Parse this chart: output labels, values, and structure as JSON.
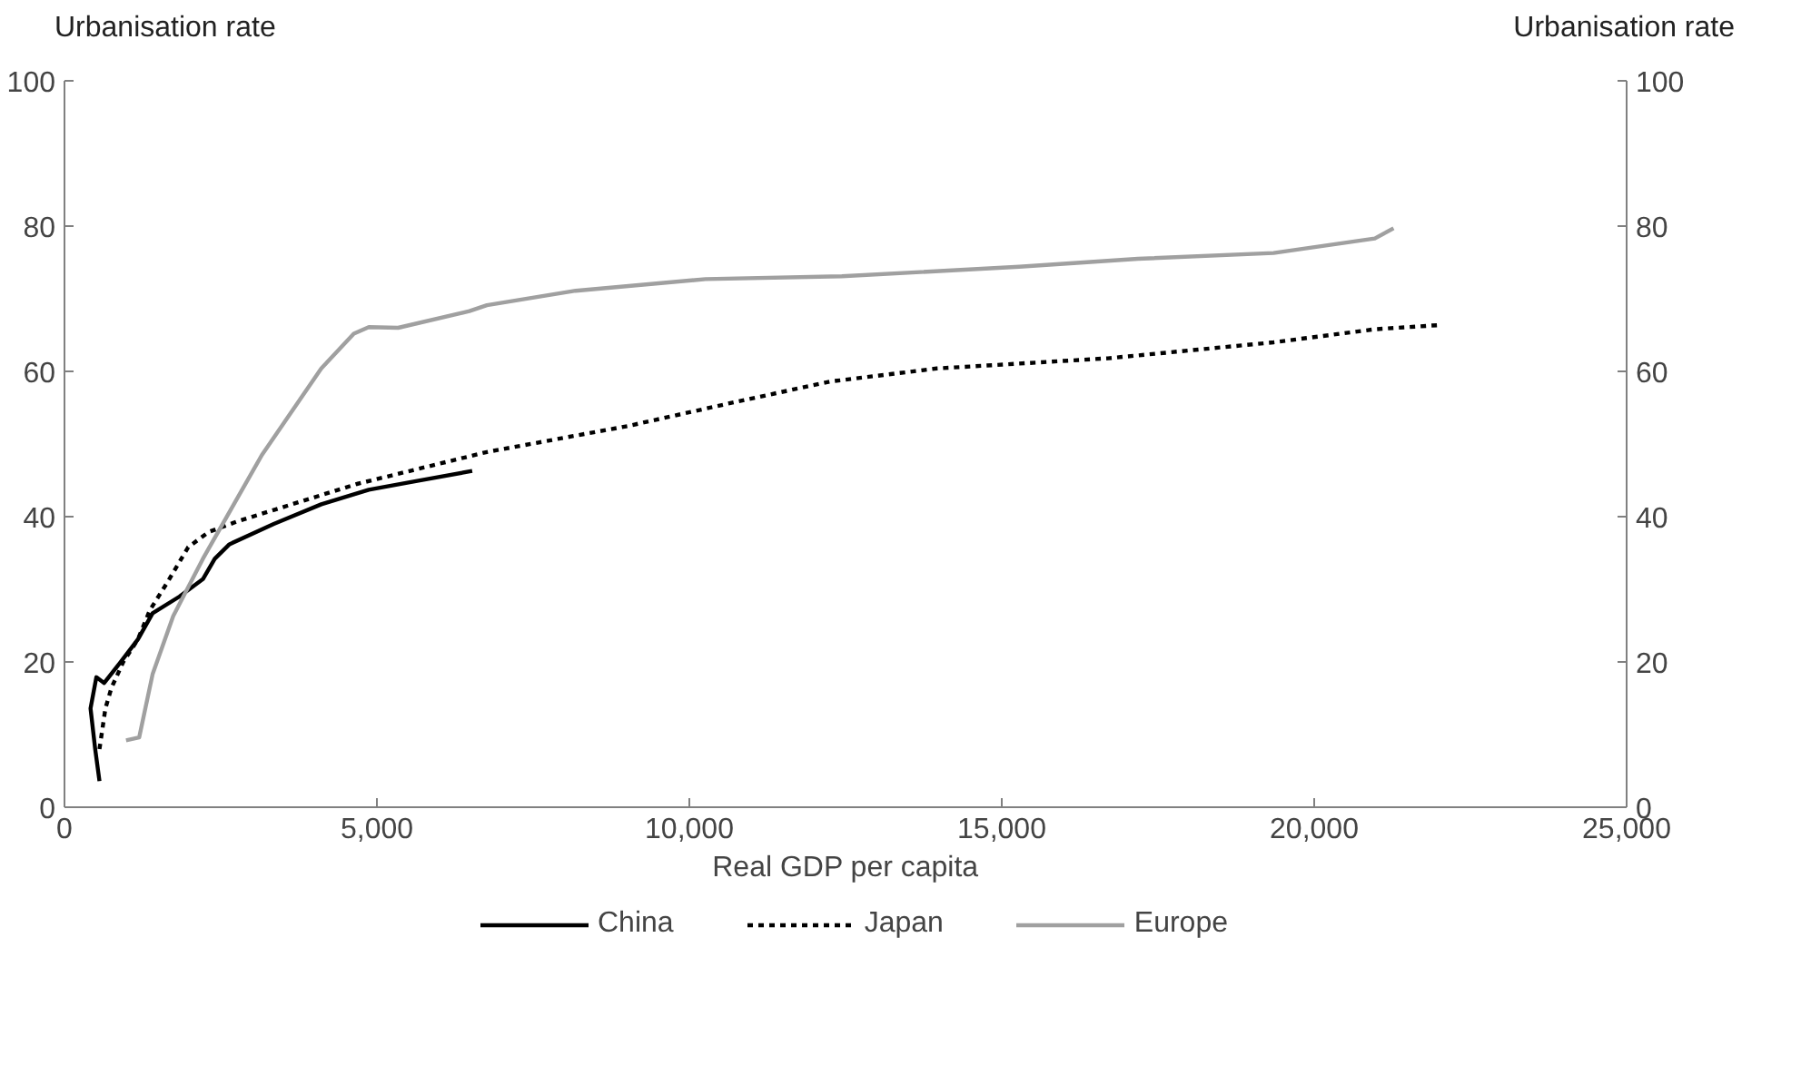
{
  "chart_data": {
    "type": "line",
    "xlabel": "Real GDP per capita",
    "ylabel": "Urbanisation rate",
    "y2label": "Urbanisation rate",
    "xlim": [
      0,
      25000
    ],
    "xticks": [
      {
        "value": 0,
        "label": "0"
      },
      {
        "value": 5000,
        "label": "5,000"
      },
      {
        "value": 10000,
        "label": "10,000"
      },
      {
        "value": 15000,
        "label": "15,000"
      },
      {
        "value": 20000,
        "label": "20,000"
      },
      {
        "value": 25000,
        "label": "25,000"
      }
    ],
    "ylim": [
      0,
      100
    ],
    "yticks": [
      0,
      20,
      40,
      60,
      80,
      100
    ],
    "y2lim": [
      0,
      100
    ],
    "y2ticks": [
      0,
      20,
      40,
      60,
      80,
      100
    ],
    "grid": false,
    "legend": "bottom",
    "series": [
      {
        "name": "China",
        "color": "#000000",
        "line_style": "solid",
        "x": [
          560,
          490,
          417,
          510,
          635,
          890,
          1175,
          1410,
          1840,
          2215,
          2405,
          2640,
          3350,
          4110,
          4870,
          5625,
          6525
        ],
        "values": [
          3.6,
          8.1,
          13.6,
          17.9,
          17.1,
          19.9,
          23.1,
          26.7,
          29.0,
          31.4,
          34.2,
          36.2,
          39.0,
          41.7,
          43.7,
          44.9,
          46.3
        ]
      },
      {
        "name": "Japan",
        "color": "#000000",
        "line_style": "dashed",
        "x": [
          560,
          655,
          750,
          940,
          1175,
          1365,
          1650,
          1980,
          2310,
          2785,
          3640,
          4680,
          6760,
          9030,
          10640,
          12250,
          13960,
          16700,
          19350,
          20970,
          22050
        ],
        "values": [
          8.0,
          13.6,
          16.4,
          20.0,
          23.1,
          27.1,
          31.0,
          35.8,
          37.9,
          39.4,
          41.7,
          44.5,
          48.9,
          52.5,
          55.6,
          58.6,
          60.4,
          61.8,
          64.0,
          65.8,
          66.4
        ]
      },
      {
        "name": "Europe",
        "color": "#a0a0a0",
        "line_style": "solid",
        "x": [
          985,
          1195,
          1410,
          1740,
          2215,
          3160,
          4110,
          4630,
          4870,
          5340,
          6480,
          6760,
          8180,
          10260,
          12440,
          15280,
          17180,
          19350,
          20970,
          21270
        ],
        "values": [
          9.2,
          9.6,
          18.3,
          26.3,
          34.2,
          48.5,
          60.4,
          65.2,
          66.1,
          66.0,
          68.3,
          69.1,
          71.1,
          72.7,
          73.1,
          74.4,
          75.5,
          76.3,
          78.3,
          79.7
        ]
      }
    ]
  }
}
